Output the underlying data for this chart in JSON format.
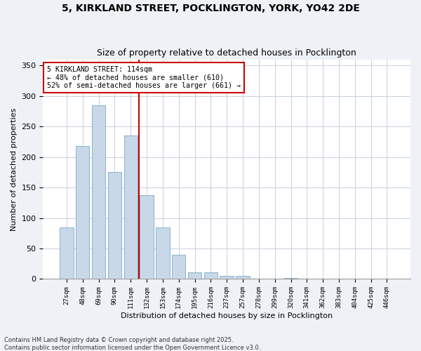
{
  "title_line1": "5, KIRKLAND STREET, POCKLINGTON, YORK, YO42 2DE",
  "title_line2": "Size of property relative to detached houses in Pocklington",
  "xlabel": "Distribution of detached houses by size in Pocklington",
  "ylabel": "Number of detached properties",
  "bar_color": "#c8d8e8",
  "bar_edge_color": "#7aaac8",
  "vline_color": "#cc0000",
  "vline_position": 4.5,
  "annotation_text": "5 KIRKLAND STREET: 114sqm\n← 48% of detached houses are smaller (610)\n52% of semi-detached houses are larger (661) →",
  "annotation_box_color": "#ffffff",
  "annotation_border_color": "#cc0000",
  "categories": [
    "27sqm",
    "48sqm",
    "69sqm",
    "90sqm",
    "111sqm",
    "132sqm",
    "153sqm",
    "174sqm",
    "195sqm",
    "216sqm",
    "237sqm",
    "257sqm",
    "278sqm",
    "299sqm",
    "320sqm",
    "341sqm",
    "362sqm",
    "383sqm",
    "404sqm",
    "425sqm",
    "446sqm"
  ],
  "values": [
    85,
    218,
    285,
    175,
    235,
    138,
    84,
    40,
    11,
    11,
    5,
    5,
    0,
    0,
    2,
    0,
    1,
    0,
    0,
    0,
    0
  ],
  "ylim": [
    0,
    360
  ],
  "yticks": [
    0,
    50,
    100,
    150,
    200,
    250,
    300,
    350
  ],
  "footnote": "Contains HM Land Registry data © Crown copyright and database right 2025.\nContains public sector information licensed under the Open Government Licence v3.0.",
  "bg_color": "#eef2f6",
  "plot_bg_color": "#ffffff",
  "grid_color": "#c8d0da"
}
